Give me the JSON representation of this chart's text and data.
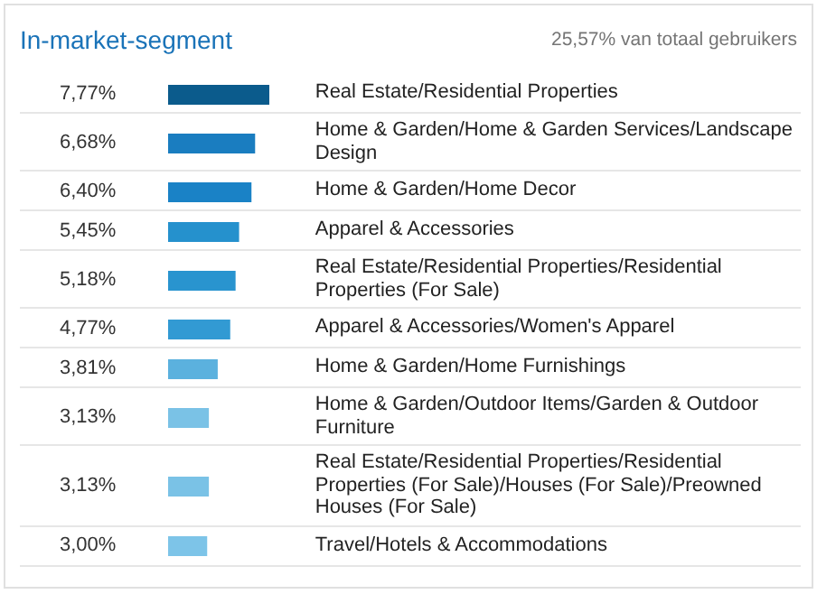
{
  "chart_data": {
    "type": "bar",
    "orientation": "horizontal",
    "title": "In-market-segment",
    "subtitle": "25,57% van totaal gebruikers",
    "categories": [
      "Real Estate/Residential Properties",
      "Home & Garden/Home & Garden Services/Landscape Design",
      "Home & Garden/Home Decor",
      "Apparel & Accessories",
      "Real Estate/Residential Properties/Residential Properties (For Sale)",
      "Apparel & Accessories/Women's Apparel",
      "Home & Garden/Home Furnishings",
      "Home & Garden/Outdoor Items/Garden & Outdoor Furniture",
      "Real Estate/Residential Properties/Residential Properties (For Sale)/Houses (For Sale)/Preowned Houses (For Sale)",
      "Travel/Hotels & Accommodations"
    ],
    "values": [
      7.77,
      6.68,
      6.4,
      5.45,
      5.18,
      4.77,
      3.81,
      3.13,
      3.13,
      3.0
    ],
    "value_labels": [
      "7,77%",
      "6,68%",
      "6,40%",
      "5,45%",
      "5,18%",
      "4,77%",
      "3,81%",
      "3,13%",
      "3,13%",
      "3,00%"
    ],
    "colors": [
      "#0b5b8c",
      "#1a7dc0",
      "#1a82c6",
      "#2591cd",
      "#2994cf",
      "#329ad3",
      "#5bb1de",
      "#7ac2e6",
      "#7ac2e6",
      "#7dc4e8"
    ]
  }
}
